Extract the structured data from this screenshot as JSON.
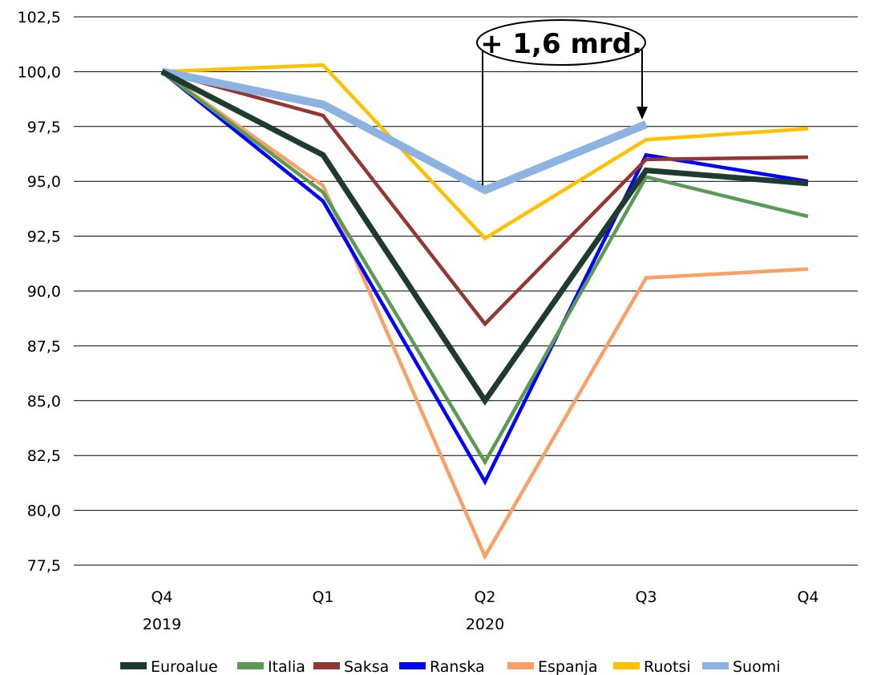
{
  "chart_data": {
    "type": "line",
    "categories": [
      "Q4",
      "Q1",
      "Q2",
      "Q3",
      "Q4"
    ],
    "year_labels": [
      {
        "category_index": 0,
        "text": "2019"
      },
      {
        "category_index": 2,
        "text": "2020"
      }
    ],
    "ylim": [
      77.5,
      102.5
    ],
    "yticks": [
      "102,5",
      "100,0",
      "97,5",
      "95,0",
      "92,5",
      "90,0",
      "87,5",
      "85,0",
      "82,5",
      "80,0",
      "77,5"
    ],
    "grid": true,
    "legend_position": "bottom",
    "series": [
      {
        "name": "Euroalue",
        "color": "#1f3a2e",
        "values": [
          100.0,
          96.2,
          85.0,
          95.5,
          94.9
        ]
      },
      {
        "name": "Italia",
        "color": "#5b9a55",
        "values": [
          100.0,
          94.5,
          82.2,
          95.2,
          93.4
        ]
      },
      {
        "name": "Saksa",
        "color": "#943634",
        "values": [
          100.0,
          98.0,
          88.5,
          96.0,
          96.1
        ]
      },
      {
        "name": "Ranska",
        "color": "#0000ff",
        "values": [
          100.0,
          94.1,
          81.3,
          96.2,
          95.0
        ]
      },
      {
        "name": "Espanja",
        "color": "#f9a066",
        "values": [
          100.0,
          94.8,
          77.9,
          90.6,
          91.0
        ]
      },
      {
        "name": "Ruotsi",
        "color": "#ffc000",
        "values": [
          100.0,
          100.3,
          92.4,
          96.9,
          97.4
        ]
      },
      {
        "name": "Suomi",
        "color": "#8db3e2",
        "values": [
          100.0,
          98.5,
          94.6,
          97.6,
          null
        ]
      }
    ],
    "annotation": {
      "text": "+ 1,6 mrd.",
      "from_category_index": 2,
      "to_category_index": 3,
      "series": "Suomi"
    }
  }
}
